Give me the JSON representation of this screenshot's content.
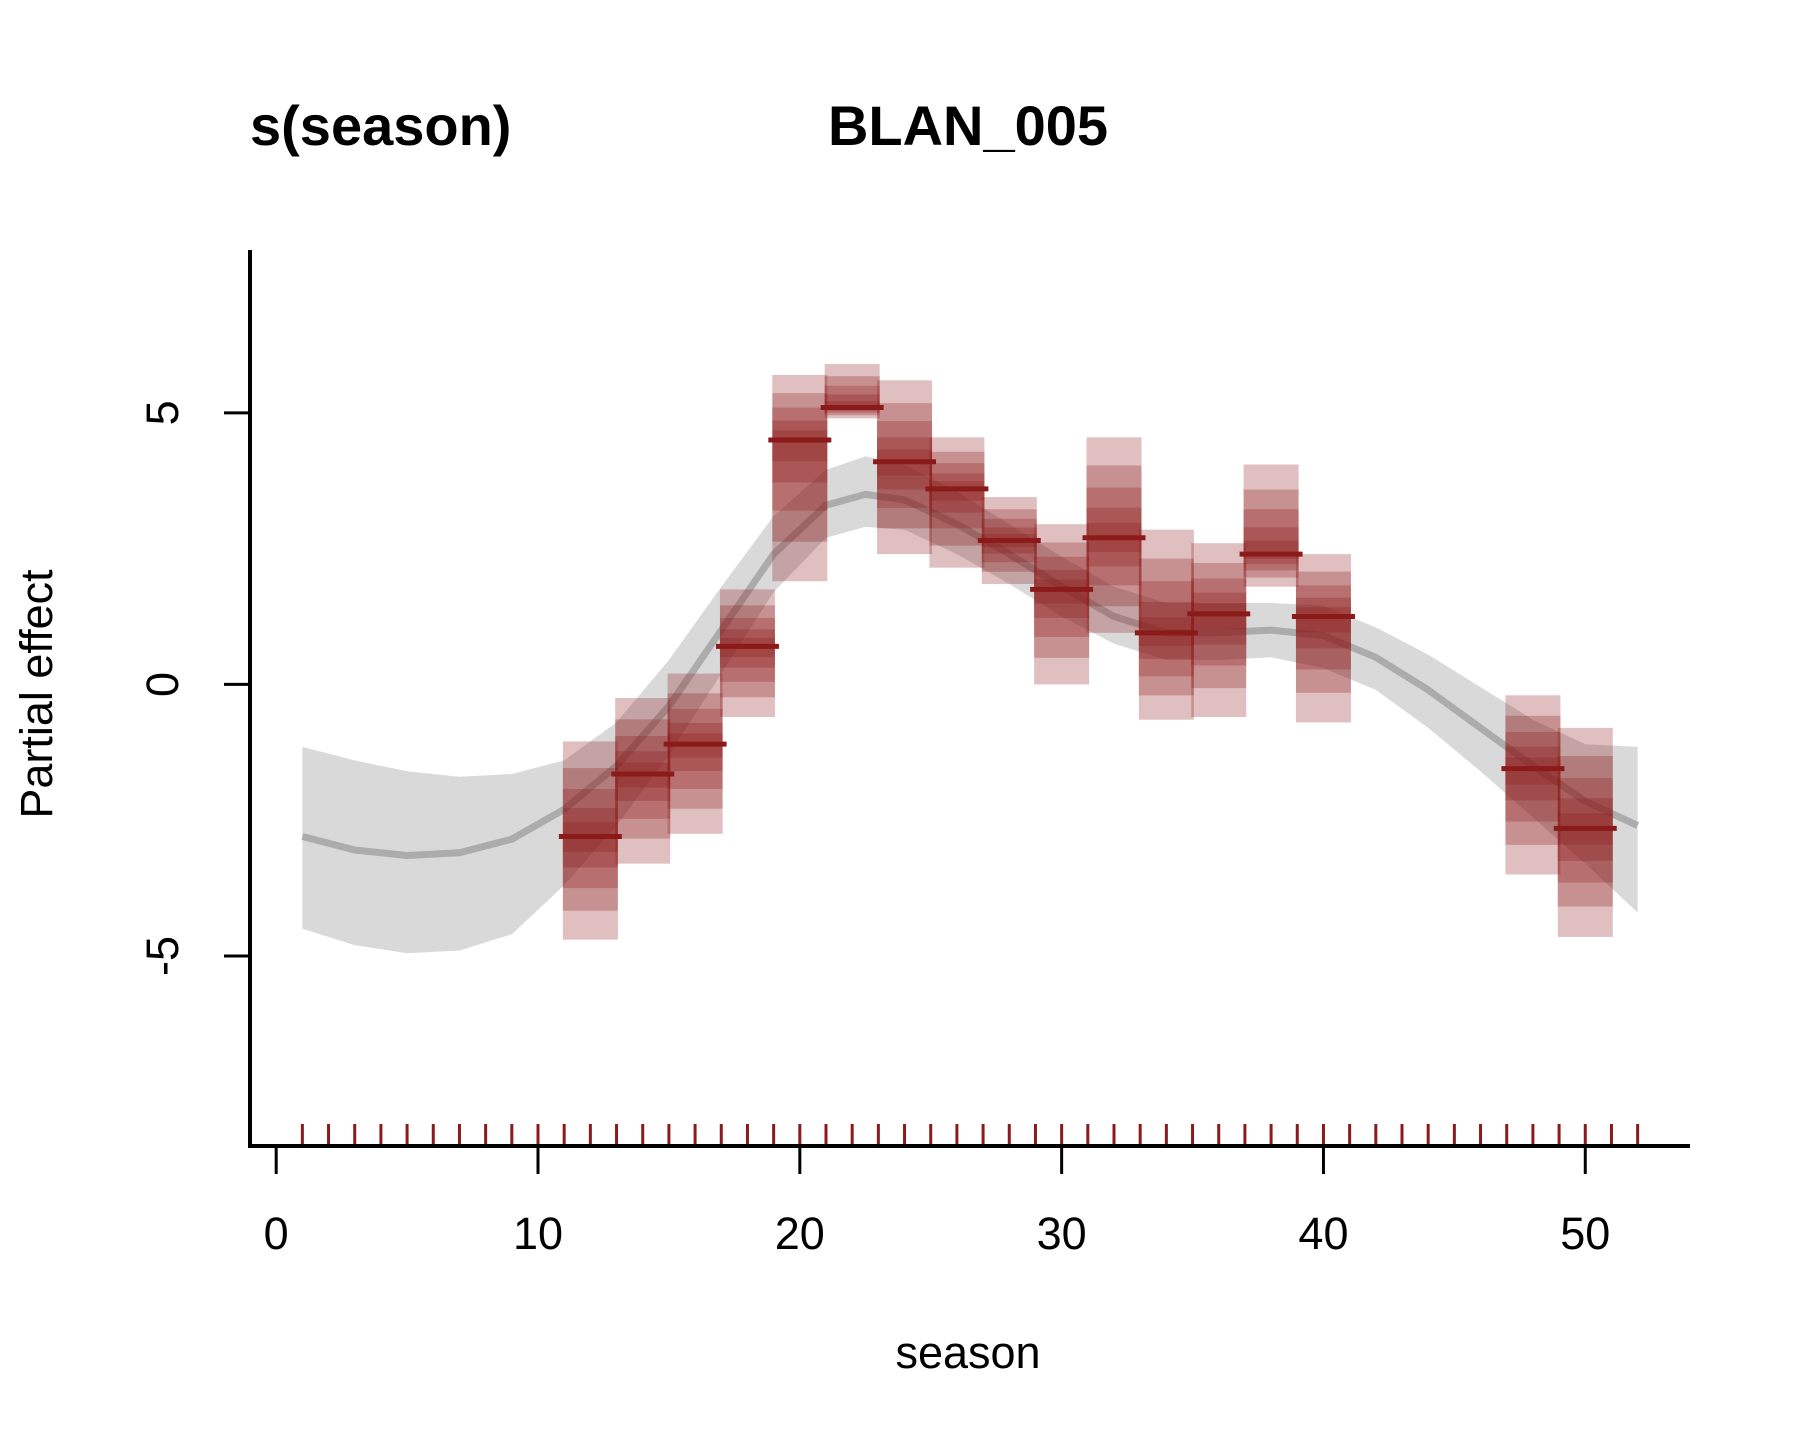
{
  "chart_data": {
    "type": "line",
    "title": "s(season)",
    "subtitle": "BLAN_005",
    "xlabel": "season",
    "ylabel": "Partial effect",
    "xlim": [
      -1,
      54
    ],
    "ylim": [
      -8.5,
      8
    ],
    "x_ticks": [
      0,
      10,
      20,
      30,
      40,
      50
    ],
    "y_ticks": [
      -5,
      0,
      5
    ],
    "grid": false,
    "legend": "none",
    "colors": {
      "smooth_line": "#a6a6a6",
      "smooth_band": "#d9d9d9",
      "observation_median": "#8b1a1a",
      "observation_band": "#8b1a1a",
      "rug": "#8b1a1a"
    },
    "smooth": {
      "x": [
        1,
        3,
        5,
        7,
        9,
        11,
        13,
        15,
        17,
        19,
        21,
        22.5,
        24,
        26,
        28,
        30,
        32,
        34,
        36,
        38,
        40,
        42,
        44,
        46,
        48,
        50,
        52
      ],
      "y": [
        -2.8,
        -3.05,
        -3.15,
        -3.1,
        -2.85,
        -2.3,
        -1.5,
        -0.4,
        1.0,
        2.4,
        3.3,
        3.5,
        3.4,
        2.95,
        2.4,
        1.8,
        1.25,
        0.95,
        0.95,
        1.0,
        0.9,
        0.5,
        -0.1,
        -0.8,
        -1.5,
        -2.15,
        -2.6
      ],
      "lower": [
        -4.5,
        -4.8,
        -4.95,
        -4.9,
        -4.6,
        -3.7,
        -2.6,
        -1.3,
        0.2,
        1.7,
        2.7,
        2.9,
        2.85,
        2.4,
        1.85,
        1.25,
        0.75,
        0.45,
        0.45,
        0.5,
        0.3,
        -0.1,
        -0.8,
        -1.6,
        -2.45,
        -3.3,
        -4.2
      ],
      "upper": [
        -1.15,
        -1.4,
        -1.6,
        -1.7,
        -1.65,
        -1.4,
        -0.7,
        0.45,
        1.8,
        3.1,
        3.95,
        4.2,
        4.05,
        3.55,
        2.95,
        2.35,
        1.8,
        1.5,
        1.5,
        1.5,
        1.45,
        1.05,
        0.55,
        -0.05,
        -0.65,
        -1.1,
        -1.15
      ]
    },
    "observations": [
      {
        "x": 12,
        "median": -2.8,
        "outer": [
          -4.7,
          -1.05
        ]
      },
      {
        "x": 14,
        "median": -1.65,
        "outer": [
          -3.3,
          -0.25
        ]
      },
      {
        "x": 16,
        "median": -1.1,
        "outer": [
          -2.75,
          0.2
        ]
      },
      {
        "x": 18,
        "median": 0.7,
        "outer": [
          -0.6,
          1.75
        ]
      },
      {
        "x": 20,
        "median": 4.5,
        "outer": [
          1.9,
          5.7
        ]
      },
      {
        "x": 22,
        "median": 5.1,
        "outer": [
          4.9,
          5.9
        ]
      },
      {
        "x": 24,
        "median": 4.1,
        "outer": [
          2.4,
          5.6
        ]
      },
      {
        "x": 26,
        "median": 3.6,
        "outer": [
          2.15,
          4.55
        ]
      },
      {
        "x": 28,
        "median": 2.65,
        "outer": [
          1.85,
          3.45
        ]
      },
      {
        "x": 30,
        "median": 1.75,
        "outer": [
          0.0,
          2.95
        ]
      },
      {
        "x": 32,
        "median": 2.7,
        "outer": [
          0.95,
          4.55
        ]
      },
      {
        "x": 34,
        "median": 0.95,
        "outer": [
          -0.65,
          2.85
        ]
      },
      {
        "x": 36,
        "median": 1.3,
        "outer": [
          -0.6,
          2.6
        ]
      },
      {
        "x": 38,
        "median": 2.4,
        "outer": [
          1.8,
          4.05
        ]
      },
      {
        "x": 40,
        "median": 1.25,
        "outer": [
          -0.7,
          2.4
        ]
      },
      {
        "x": 48,
        "median": -1.55,
        "outer": [
          -3.5,
          -0.2
        ]
      },
      {
        "x": 50,
        "median": -2.65,
        "outer": [
          -4.65,
          -0.8
        ]
      }
    ],
    "rug": [
      1,
      2,
      3,
      4,
      5,
      6,
      7,
      8,
      9,
      10,
      11,
      12,
      13,
      14,
      15,
      16,
      17,
      18,
      19,
      20,
      21,
      22,
      23,
      24,
      25,
      26,
      27,
      28,
      29,
      30,
      31,
      32,
      33,
      34,
      35,
      36,
      37,
      38,
      39,
      40,
      41,
      42,
      43,
      44,
      45,
      46,
      47,
      48,
      49,
      50,
      51,
      52
    ]
  }
}
